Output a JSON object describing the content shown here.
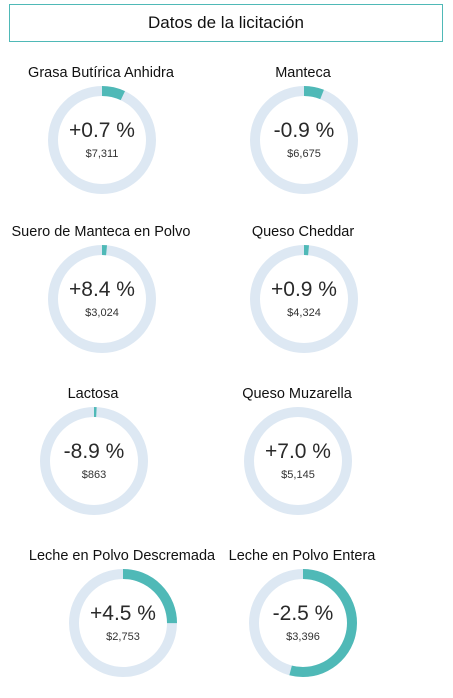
{
  "header": {
    "title": "Datos de la licitación"
  },
  "colors": {
    "track": "#dde8f3",
    "accent": "#4fb9b7",
    "border": "#4fb9b7"
  },
  "items": [
    {
      "label": "Grasa Butírica Anhidra",
      "change": "+0.7 %",
      "price": "$7,311",
      "fill": 0.07
    },
    {
      "label": "Manteca",
      "change": "-0.9 %",
      "price": "$6,675",
      "fill": 0.06
    },
    {
      "label": "Suero de Manteca en Polvo",
      "change": "+8.4 %",
      "price": "$3,024",
      "fill": 0.015
    },
    {
      "label": "Queso Cheddar",
      "change": "+0.9 %",
      "price": "$4,324",
      "fill": 0.015
    },
    {
      "label": "Lactosa",
      "change": "-8.9 %",
      "price": "$863",
      "fill": 0.008
    },
    {
      "label": "Queso Muzarella",
      "change": "+7.0 %",
      "price": "$5,145",
      "fill": 0.0
    },
    {
      "label": "Leche en Polvo Descremada",
      "change": "+4.5 %",
      "price": "$2,753",
      "fill": 0.25
    },
    {
      "label": "Leche en Polvo Entera",
      "change": "-2.5 %",
      "price": "$3,396",
      "fill": 0.54
    }
  ]
}
